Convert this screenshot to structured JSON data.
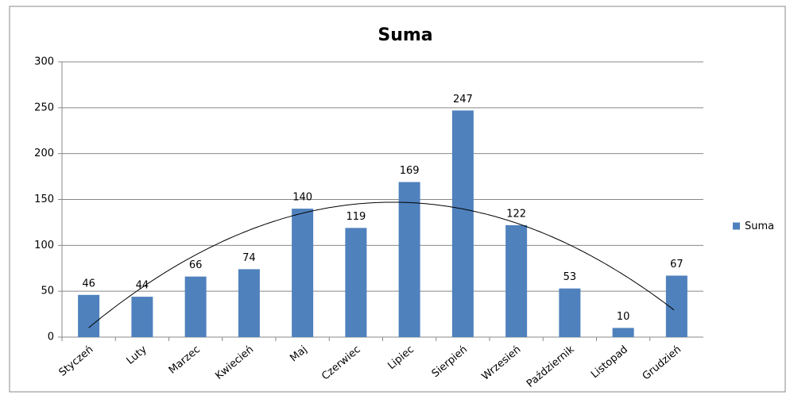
{
  "chart_data": {
    "type": "bar",
    "title": "Suma",
    "categories": [
      "Styczeń",
      "Luty",
      "Marzec",
      "Kwiecień",
      "Maj",
      "Czerwiec",
      "Lipiec",
      "Sierpień",
      "Wrzesień",
      "Październik",
      "Listopad",
      "Grudzień"
    ],
    "series": [
      {
        "name": "Suma",
        "color": "#4f81bd",
        "values": [
          46,
          44,
          66,
          74,
          140,
          119,
          169,
          247,
          122,
          53,
          10,
          67
        ]
      }
    ],
    "ylim": [
      0,
      300
    ],
    "yticks": [
      0,
      50,
      100,
      150,
      200,
      250,
      300
    ],
    "grid": true,
    "legend": "right",
    "trendline": "polynomial",
    "data_labels": true
  }
}
